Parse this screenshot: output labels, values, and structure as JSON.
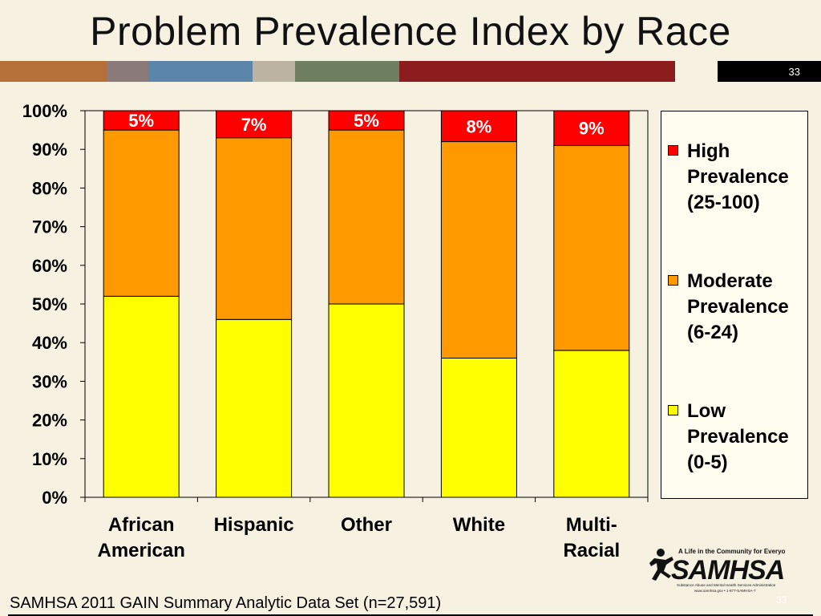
{
  "title": "Problem Prevalence Index by Race",
  "slide_number": "33",
  "footer_page": "33",
  "source_note": "SAMHSA 2011 GAIN Summary Analytic Data Set (n=27,591)",
  "logo": {
    "tagline": "A Life in the Community for Everyone",
    "name": "SAMHSA",
    "subtitle": "Substance Abuse and Mental Health Services Administration",
    "contact": "www.samhsa.gov • 1-877-SAMHSA-7"
  },
  "band_colors": [
    "#b5703a",
    "#8a7b7a",
    "#5b86a9",
    "#bdb3a3",
    "#6e7f62",
    "#8c1d1f"
  ],
  "chart_data": {
    "type": "bar",
    "stacked": true,
    "categories": [
      [
        "African",
        "American"
      ],
      [
        "Hispanic"
      ],
      [
        "Other"
      ],
      [
        "White"
      ],
      [
        "Multi-",
        "Racial"
      ]
    ],
    "series": [
      {
        "name": "Low Prevalence (0-5)",
        "legend_lines": [
          "Low",
          "Prevalence",
          "(0-5)"
        ],
        "color": "#ffff00",
        "values": [
          52,
          46,
          50,
          36,
          38
        ]
      },
      {
        "name": "Moderate Prevalence (6-24)",
        "legend_lines": [
          "Moderate",
          "Prevalence",
          "(6-24)"
        ],
        "color": "#ff9900",
        "values": [
          43,
          47,
          45,
          56,
          53
        ]
      },
      {
        "name": "High Prevalence (25-100)",
        "legend_lines": [
          "High",
          "Prevalence",
          "(25-100)"
        ],
        "color": "#ff0000",
        "values": [
          5,
          7,
          5,
          8,
          9
        ]
      }
    ],
    "data_labels": [
      "5%",
      "7%",
      "5%",
      "8%",
      "9%"
    ],
    "y_ticks": [
      "0%",
      "10%",
      "20%",
      "30%",
      "40%",
      "50%",
      "60%",
      "70%",
      "80%",
      "90%",
      "100%"
    ],
    "ylim": [
      0,
      100
    ],
    "grid": false,
    "legend_position": "right"
  }
}
